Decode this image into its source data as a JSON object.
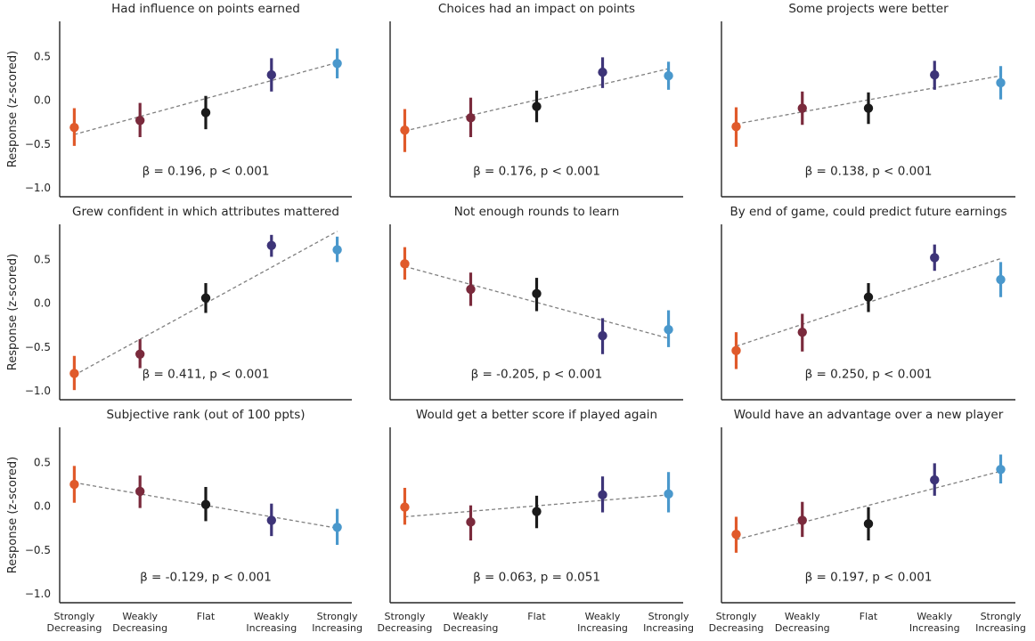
{
  "chart_data": {
    "type": "scatter",
    "ylabel": "Response (z-scored)",
    "ylim": [
      -1.1,
      0.9
    ],
    "yticks": [
      "0.5",
      "0.0",
      "−0.5",
      "−1.0"
    ],
    "yticks_values": [
      0.5,
      0.0,
      -0.5,
      -1.0
    ],
    "categories": [
      [
        "Strongly",
        "Decreasing"
      ],
      [
        "Weakly",
        "Decreasing"
      ],
      [
        "Flat"
      ],
      [
        "Weakly",
        "Increasing"
      ],
      [
        "Strongly",
        "Increasing"
      ]
    ],
    "colors": [
      "#e05a2b",
      "#7a2a3c",
      "#1a1a1a",
      "#3d3478",
      "#4a98cc"
    ],
    "grid": false,
    "panels": [
      {
        "title": "Had influence on points earned",
        "stat": "β = 0.196, p < 0.001",
        "means": [
          -0.31,
          -0.23,
          -0.14,
          0.29,
          0.42
        ],
        "lower": [
          -0.52,
          -0.42,
          -0.33,
          0.1,
          0.25
        ],
        "upper": [
          -0.09,
          -0.03,
          0.05,
          0.48,
          0.59
        ],
        "fit": [
          -0.39,
          0.43
        ]
      },
      {
        "title": "Choices had an impact on points",
        "stat": "β = 0.176, p < 0.001",
        "means": [
          -0.34,
          -0.2,
          -0.07,
          0.32,
          0.28
        ],
        "lower": [
          -0.59,
          -0.42,
          -0.25,
          0.14,
          0.12
        ],
        "upper": [
          -0.1,
          0.03,
          0.11,
          0.49,
          0.44
        ],
        "fit": [
          -0.35,
          0.36
        ]
      },
      {
        "title": "Some projects were better",
        "stat": "β = 0.138, p < 0.001",
        "means": [
          -0.3,
          -0.09,
          -0.09,
          0.29,
          0.2
        ],
        "lower": [
          -0.53,
          -0.28,
          -0.27,
          0.12,
          0.01
        ],
        "upper": [
          -0.08,
          0.1,
          0.09,
          0.45,
          0.39
        ],
        "fit": [
          -0.27,
          0.28
        ]
      },
      {
        "title": "Grew confident in which attributes mattered",
        "stat": "β = 0.411, p < 0.001",
        "means": [
          -0.8,
          -0.58,
          0.06,
          0.66,
          0.61
        ],
        "lower": [
          -0.99,
          -0.74,
          -0.11,
          0.53,
          0.47
        ],
        "upper": [
          -0.6,
          -0.41,
          0.23,
          0.78,
          0.76
        ],
        "fit": [
          -0.82,
          0.82
        ]
      },
      {
        "title": "Not enough rounds to learn",
        "stat": "β = -0.205, p < 0.001",
        "means": [
          0.45,
          0.16,
          0.11,
          -0.37,
          -0.3
        ],
        "lower": [
          0.27,
          -0.03,
          -0.09,
          -0.58,
          -0.5
        ],
        "upper": [
          0.64,
          0.35,
          0.29,
          -0.17,
          -0.08
        ],
        "fit": [
          0.42,
          -0.4
        ]
      },
      {
        "title": "By end of game, could predict future earnings",
        "stat": "β = 0.250, p < 0.001",
        "means": [
          -0.54,
          -0.33,
          0.07,
          0.52,
          0.27
        ],
        "lower": [
          -0.75,
          -0.55,
          -0.1,
          0.37,
          0.07
        ],
        "upper": [
          -0.33,
          -0.12,
          0.23,
          0.67,
          0.47
        ],
        "fit": [
          -0.49,
          0.51
        ]
      },
      {
        "title": "Subjective rank (out of 100 ppts)",
        "stat": "β = -0.129, p < 0.001",
        "means": [
          0.25,
          0.17,
          0.02,
          -0.16,
          -0.24
        ],
        "lower": [
          0.04,
          -0.02,
          -0.17,
          -0.34,
          -0.44
        ],
        "upper": [
          0.46,
          0.35,
          0.22,
          0.03,
          -0.03
        ],
        "fit": [
          0.27,
          -0.25
        ]
      },
      {
        "title": "Would get a better score if played again",
        "stat": "β = 0.063, p = 0.051",
        "means": [
          -0.01,
          -0.18,
          -0.06,
          0.13,
          0.14
        ],
        "lower": [
          -0.21,
          -0.39,
          -0.25,
          -0.07,
          -0.07
        ],
        "upper": [
          0.21,
          0.01,
          0.12,
          0.34,
          0.39
        ],
        "fit": [
          -0.12,
          0.13
        ]
      },
      {
        "title": "Would have an advantage over a new player",
        "stat": "β = 0.197, p < 0.001",
        "means": [
          -0.32,
          -0.16,
          -0.2,
          0.3,
          0.42
        ],
        "lower": [
          -0.53,
          -0.35,
          -0.39,
          0.12,
          0.26
        ],
        "upper": [
          -0.12,
          0.05,
          -0.01,
          0.49,
          0.59
        ],
        "fit": [
          -0.38,
          0.4
        ]
      }
    ]
  }
}
